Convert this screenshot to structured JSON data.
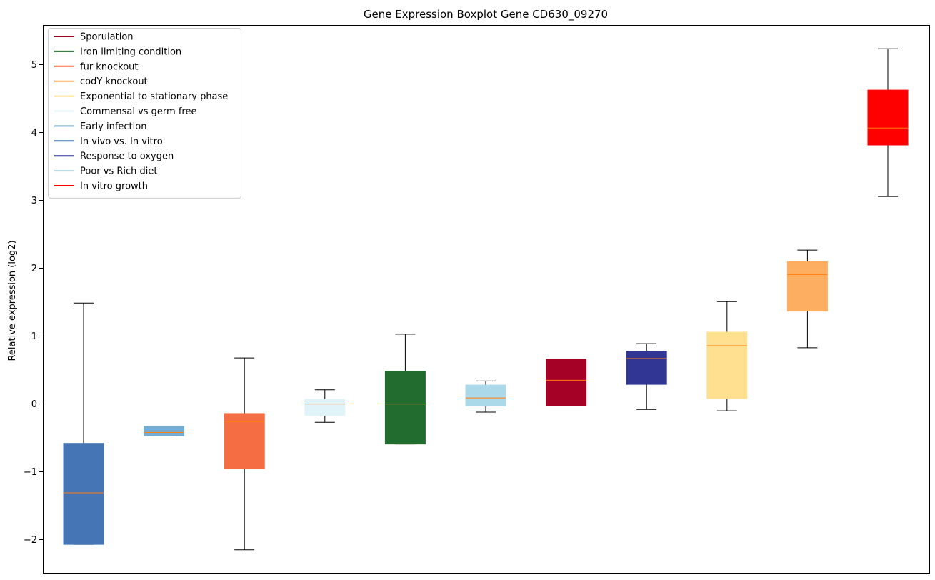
{
  "chart_data": {
    "type": "boxplot",
    "title": "Gene Expression Boxplot Gene CD630_09270",
    "xlabel": "",
    "ylabel": "Relative expression (log2)",
    "ylim": [
      -2.5,
      5.58
    ],
    "yticks": [
      -2,
      -1,
      0,
      1,
      2,
      3,
      4,
      5
    ],
    "ytick_labels": [
      "−2",
      "−1",
      "0",
      "1",
      "2",
      "3",
      "4",
      "5"
    ],
    "median_color": "#ff7f0e",
    "legend_position": "top-left",
    "legend": [
      {
        "label": "Sporulation",
        "color": "#a50026"
      },
      {
        "label": "Iron limiting condition",
        "color": "#216c2e"
      },
      {
        "label": "fur knockout",
        "color": "#f46d43"
      },
      {
        "label": "codY knockout",
        "color": "#fdae61"
      },
      {
        "label": "Exponential to stationary phase",
        "color": "#fee090"
      },
      {
        "label": "Commensal vs germ free",
        "color": "#e0f3f8"
      },
      {
        "label": "Early infection",
        "color": "#74add1"
      },
      {
        "label": "In vivo vs. In vitro",
        "color": "#4575b4"
      },
      {
        "label": "Response to oxygen",
        "color": "#313695"
      },
      {
        "label": "Poor vs Rich diet",
        "color": "#abd9e9"
      },
      {
        "label": "In vitro growth",
        "color": "#ff0000"
      }
    ],
    "boxes": [
      {
        "group": "In vivo vs. In vitro",
        "color": "#4575b4",
        "whisker_low": -2.08,
        "q1": -2.08,
        "median": -1.32,
        "q3": -0.59,
        "whisker_high": 1.48
      },
      {
        "group": "Early infection",
        "color": "#74add1",
        "whisker_low": -0.48,
        "q1": -0.48,
        "median": -0.43,
        "q3": -0.34,
        "whisker_high": -0.34
      },
      {
        "group": "fur knockout",
        "color": "#f46d43",
        "whisker_low": -2.16,
        "q1": -0.96,
        "median": -0.27,
        "q3": -0.15,
        "whisker_high": 0.67
      },
      {
        "group": "Commensal vs germ free",
        "color": "#e0f3f8",
        "whisker_low": -0.28,
        "q1": -0.18,
        "median": -0.01,
        "q3": 0.06,
        "whisker_high": 0.2
      },
      {
        "group": "Iron limiting condition",
        "color": "#216c2e",
        "whisker_low": -0.6,
        "q1": -0.6,
        "median": -0.01,
        "q3": 0.47,
        "whisker_high": 1.02
      },
      {
        "group": "Poor vs Rich diet",
        "color": "#abd9e9",
        "whisker_low": -0.13,
        "q1": -0.04,
        "median": 0.08,
        "q3": 0.27,
        "whisker_high": 0.33
      },
      {
        "group": "Sporulation",
        "color": "#a50026",
        "whisker_low": -0.03,
        "q1": -0.03,
        "median": 0.34,
        "q3": 0.65,
        "whisker_high": 0.65
      },
      {
        "group": "Response to oxygen",
        "color": "#313695",
        "whisker_low": -0.09,
        "q1": 0.28,
        "median": 0.66,
        "q3": 0.77,
        "whisker_high": 0.88
      },
      {
        "group": "Exponential to stationary phase",
        "color": "#fee090",
        "whisker_low": -0.11,
        "q1": 0.07,
        "median": 0.85,
        "q3": 1.05,
        "whisker_high": 1.5
      },
      {
        "group": "codY knockout",
        "color": "#fdae61",
        "whisker_low": 0.82,
        "q1": 1.36,
        "median": 1.9,
        "q3": 2.09,
        "whisker_high": 2.26
      },
      {
        "group": "In vitro growth",
        "color": "#ff0000",
        "whisker_low": 3.05,
        "q1": 3.81,
        "median": 4.06,
        "q3": 4.62,
        "whisker_high": 5.23
      }
    ]
  }
}
